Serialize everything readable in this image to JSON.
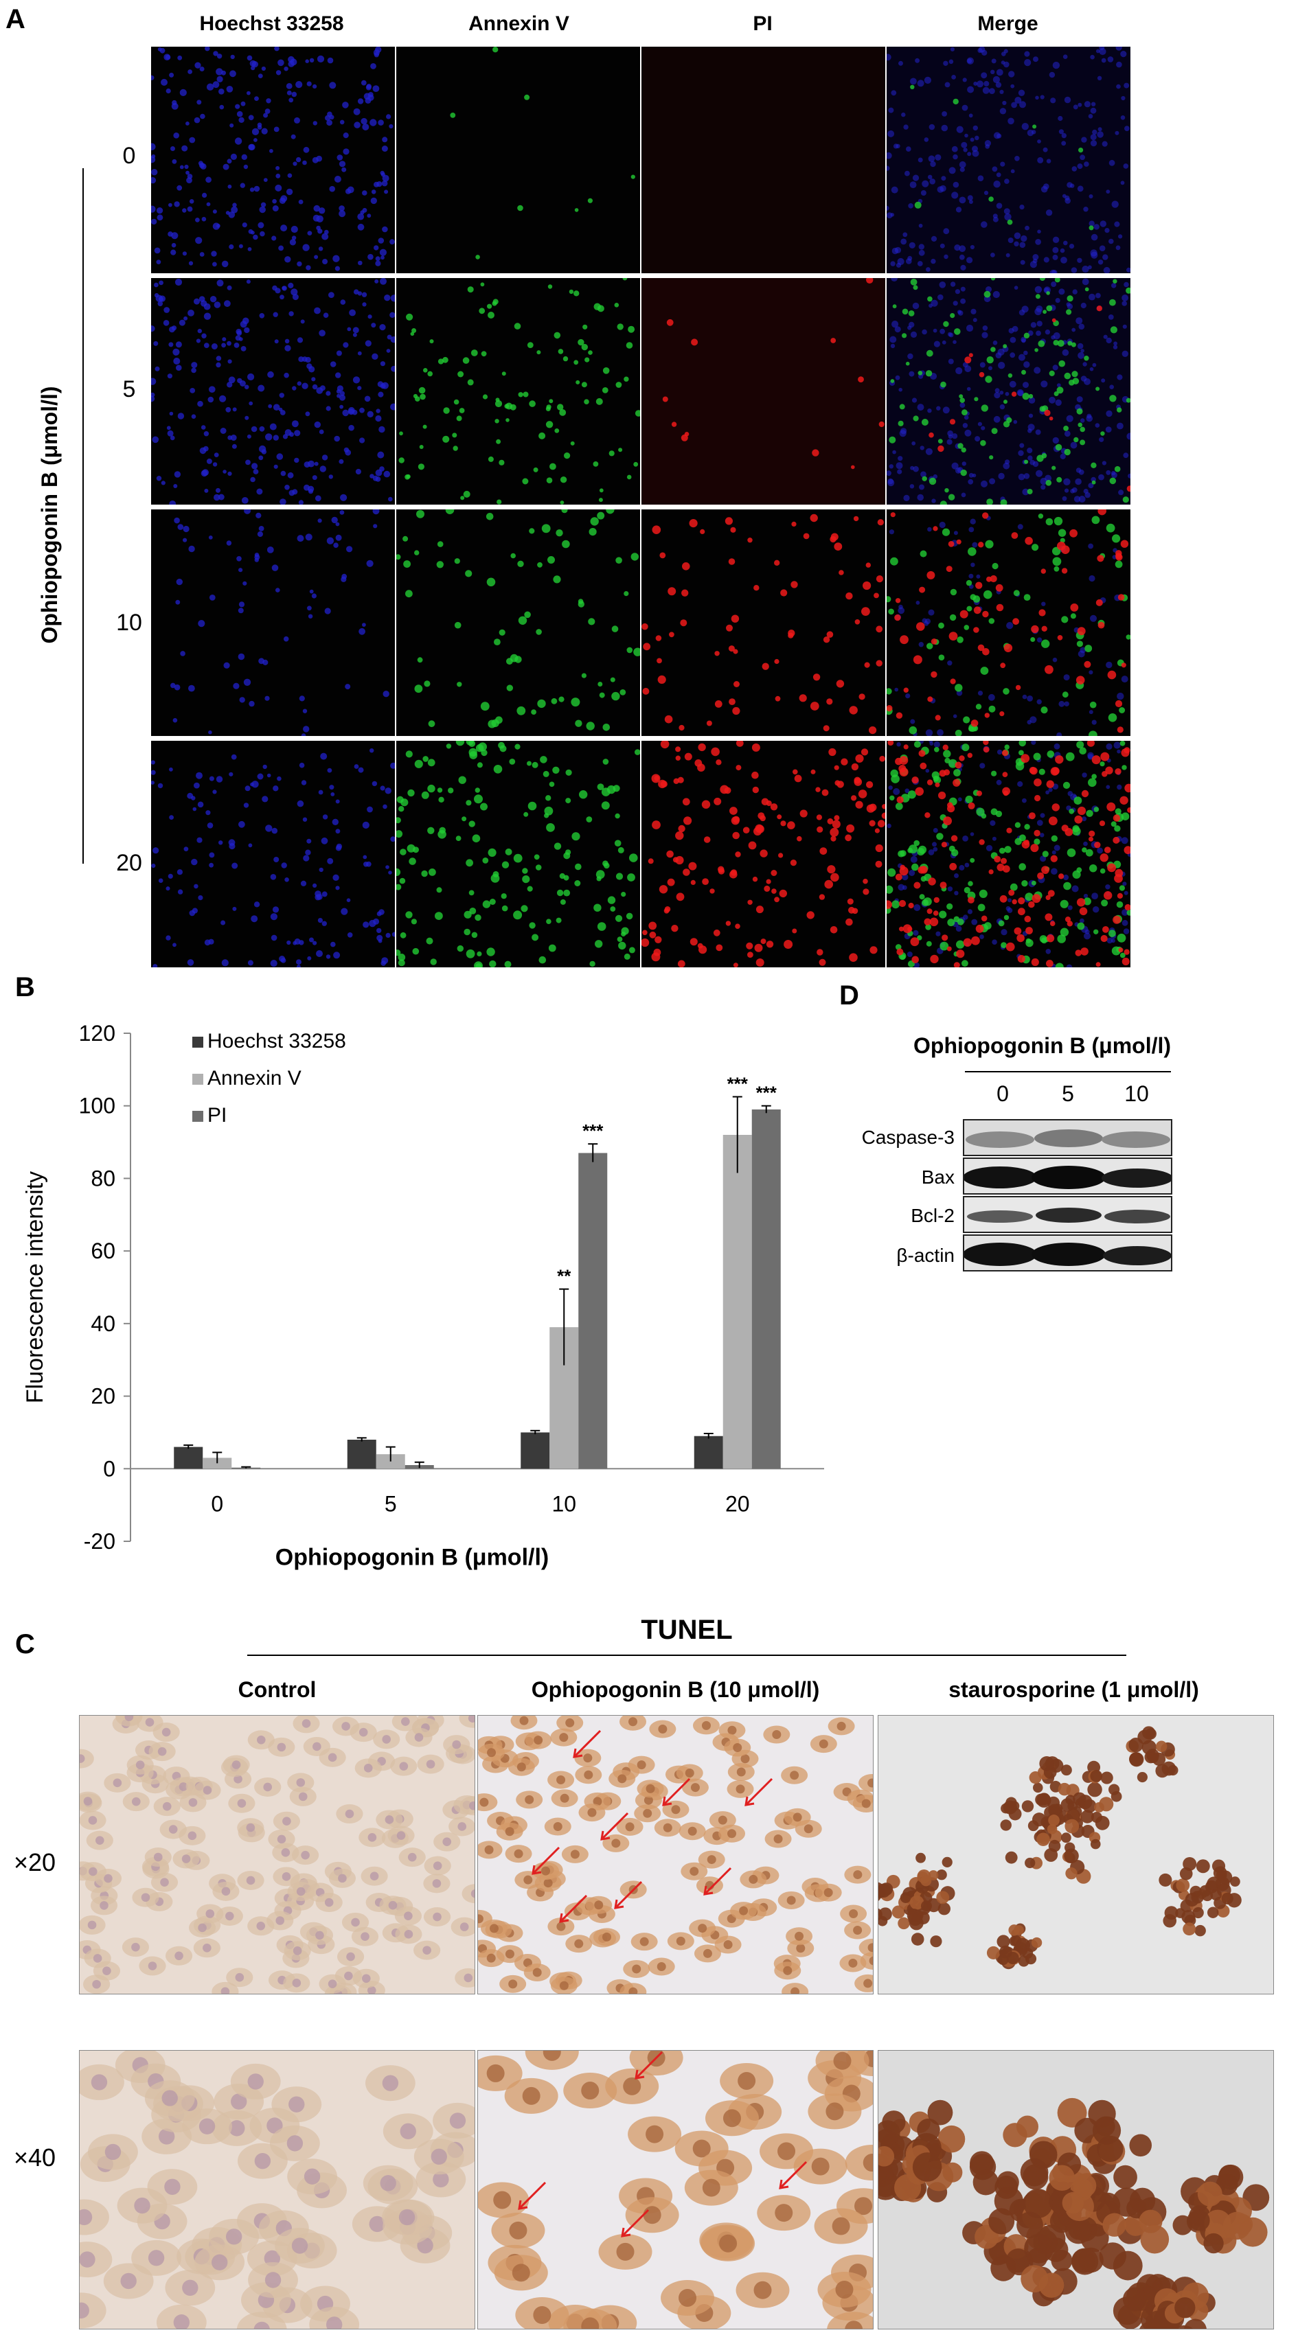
{
  "panelA": {
    "letter": "A",
    "columns": [
      "Hoechst 33258",
      "Annexin V",
      "PI",
      "Merge"
    ],
    "rows": [
      "0",
      "5",
      "10",
      "20"
    ],
    "ylabel": "Ophiopogonin B (μmol/l)",
    "colors": {
      "hoechst": "#2222cc",
      "annexin": "#22cc33",
      "pi": "#ee1a1a"
    }
  },
  "panelB": {
    "letter": "B",
    "chart_data": {
      "type": "bar",
      "categories": [
        "0",
        "5",
        "10",
        "20"
      ],
      "series": [
        {
          "name": "Hoechst 33258",
          "values": [
            6,
            8,
            10,
            9
          ],
          "errors": [
            0.5,
            0.5,
            0.5,
            0.7
          ],
          "color": "#3a3a3a"
        },
        {
          "name": "Annexin V",
          "values": [
            3,
            4,
            39,
            92
          ],
          "errors": [
            1.5,
            2,
            10.5,
            10.5
          ],
          "color": "#b0b0b0"
        },
        {
          "name": "PI",
          "values": [
            0.3,
            1,
            87,
            99
          ],
          "errors": [
            0.2,
            0.8,
            2.5,
            1
          ],
          "color": "#6e6e6e"
        }
      ],
      "significance": [
        {
          "category": "10",
          "series": "Annexin V",
          "label": "**"
        },
        {
          "category": "10",
          "series": "PI",
          "label": "***"
        },
        {
          "category": "20",
          "series": "Annexin V",
          "label": "***"
        },
        {
          "category": "20",
          "series": "PI",
          "label": "***"
        }
      ],
      "xlabel": "Ophiopogonin B (μmol/l)",
      "ylabel": "Fluorescence intensity",
      "ylim": [
        -20,
        120
      ],
      "yticks": [
        "120",
        "100",
        "80",
        "60",
        "40",
        "20",
        "0",
        "-20"
      ],
      "legend_position": "top-left",
      "grid": false
    }
  },
  "panelD": {
    "letter": "D",
    "title": "Ophiopogonin B (μmol/l)",
    "doses": [
      "0",
      "5",
      "10"
    ],
    "blots": [
      "Caspase-3",
      "Bax",
      "Bcl-2",
      "β-actin"
    ]
  },
  "panelC": {
    "letter": "C",
    "title": "TUNEL",
    "columns": [
      "Control",
      "Ophiopogonin B (10 μmol/l)",
      "staurosporine (1 μmol/l)"
    ],
    "magnifications": [
      "×20",
      "×40"
    ],
    "arrow_color": "#e02020"
  }
}
